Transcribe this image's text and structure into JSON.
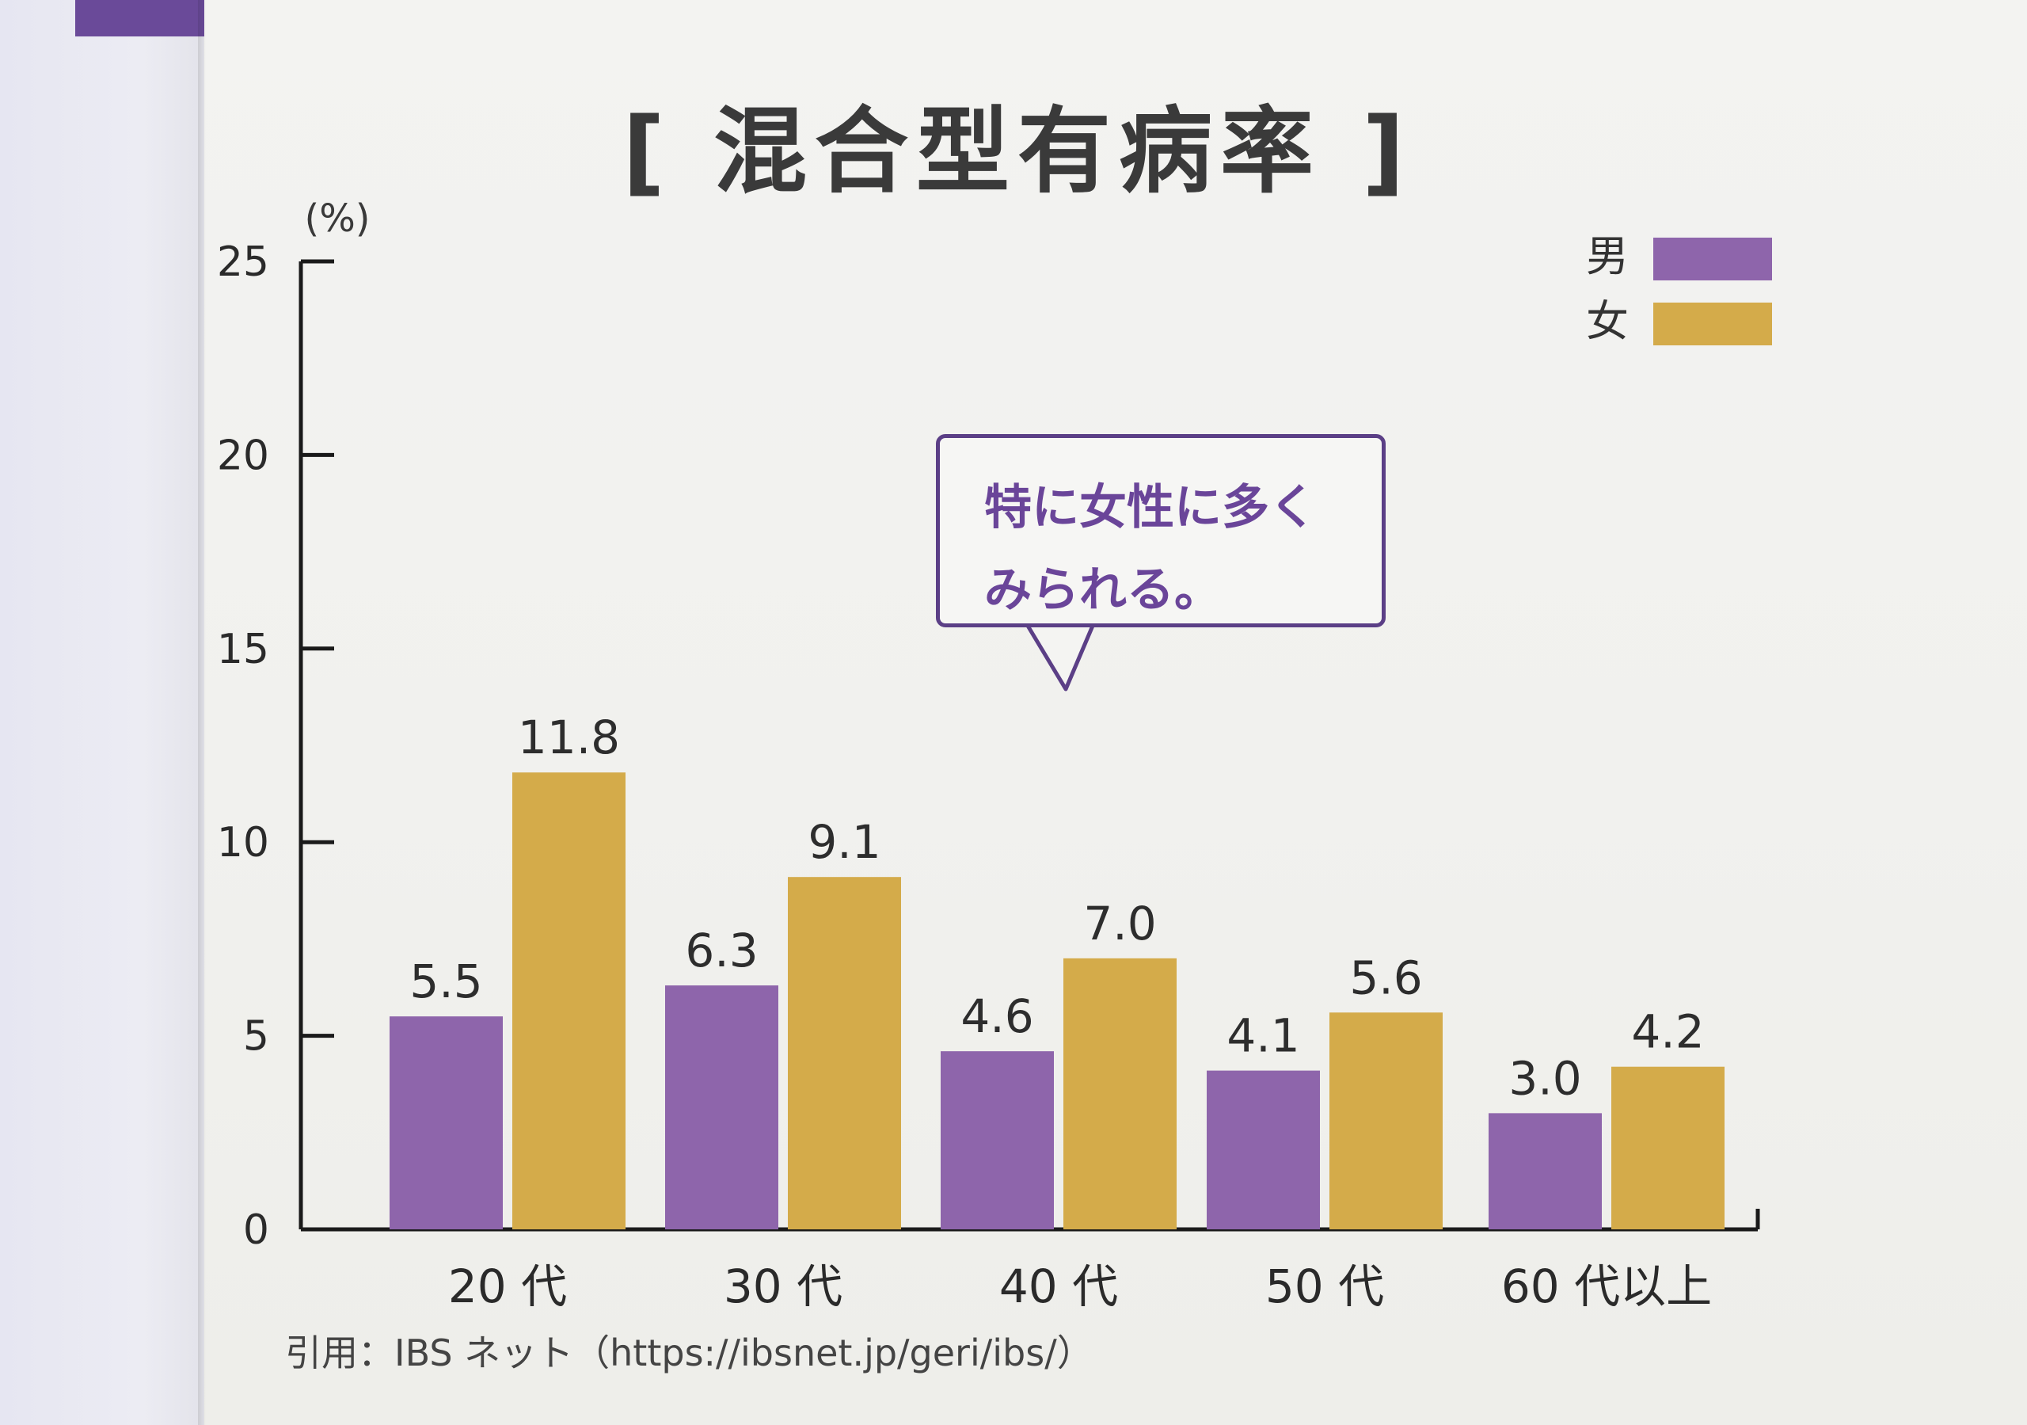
{
  "chart_data": {
    "type": "bar",
    "title": "[ 混合型有病率 ]",
    "ylabel": "(%)",
    "xlabel": "",
    "categories": [
      "20 代",
      "30 代",
      "40 代",
      "50 代",
      "60 代以上"
    ],
    "series": [
      {
        "name": "男",
        "values": [
          5.5,
          6.3,
          4.6,
          4.1,
          3.0
        ],
        "color": "#8e65ab"
      },
      {
        "name": "女",
        "values": [
          11.8,
          9.1,
          7.0,
          5.6,
          4.2
        ],
        "color": "#d4ab4a"
      }
    ],
    "ylim": [
      0,
      25
    ],
    "yticks": [
      "0",
      "5",
      "10",
      "15",
      "20",
      "25"
    ],
    "value_labels": [
      [
        "5.5",
        "6.3",
        "4.6",
        "4.1",
        "3.0"
      ],
      [
        "11.8",
        "9.1",
        "7.0",
        "5.6",
        "4.2"
      ]
    ],
    "legend_position": "top-right",
    "grid": false
  },
  "callout": {
    "line1": "特に女性に多く",
    "line2": "みられる。"
  },
  "source": "引用：IBS ネット（https://ibsnet.jp/geri/ibs/）",
  "colors": {
    "accent": "#6a4a99",
    "male": "#8e65ab",
    "female": "#d4ab4a",
    "axis": "#1a1a1a"
  }
}
